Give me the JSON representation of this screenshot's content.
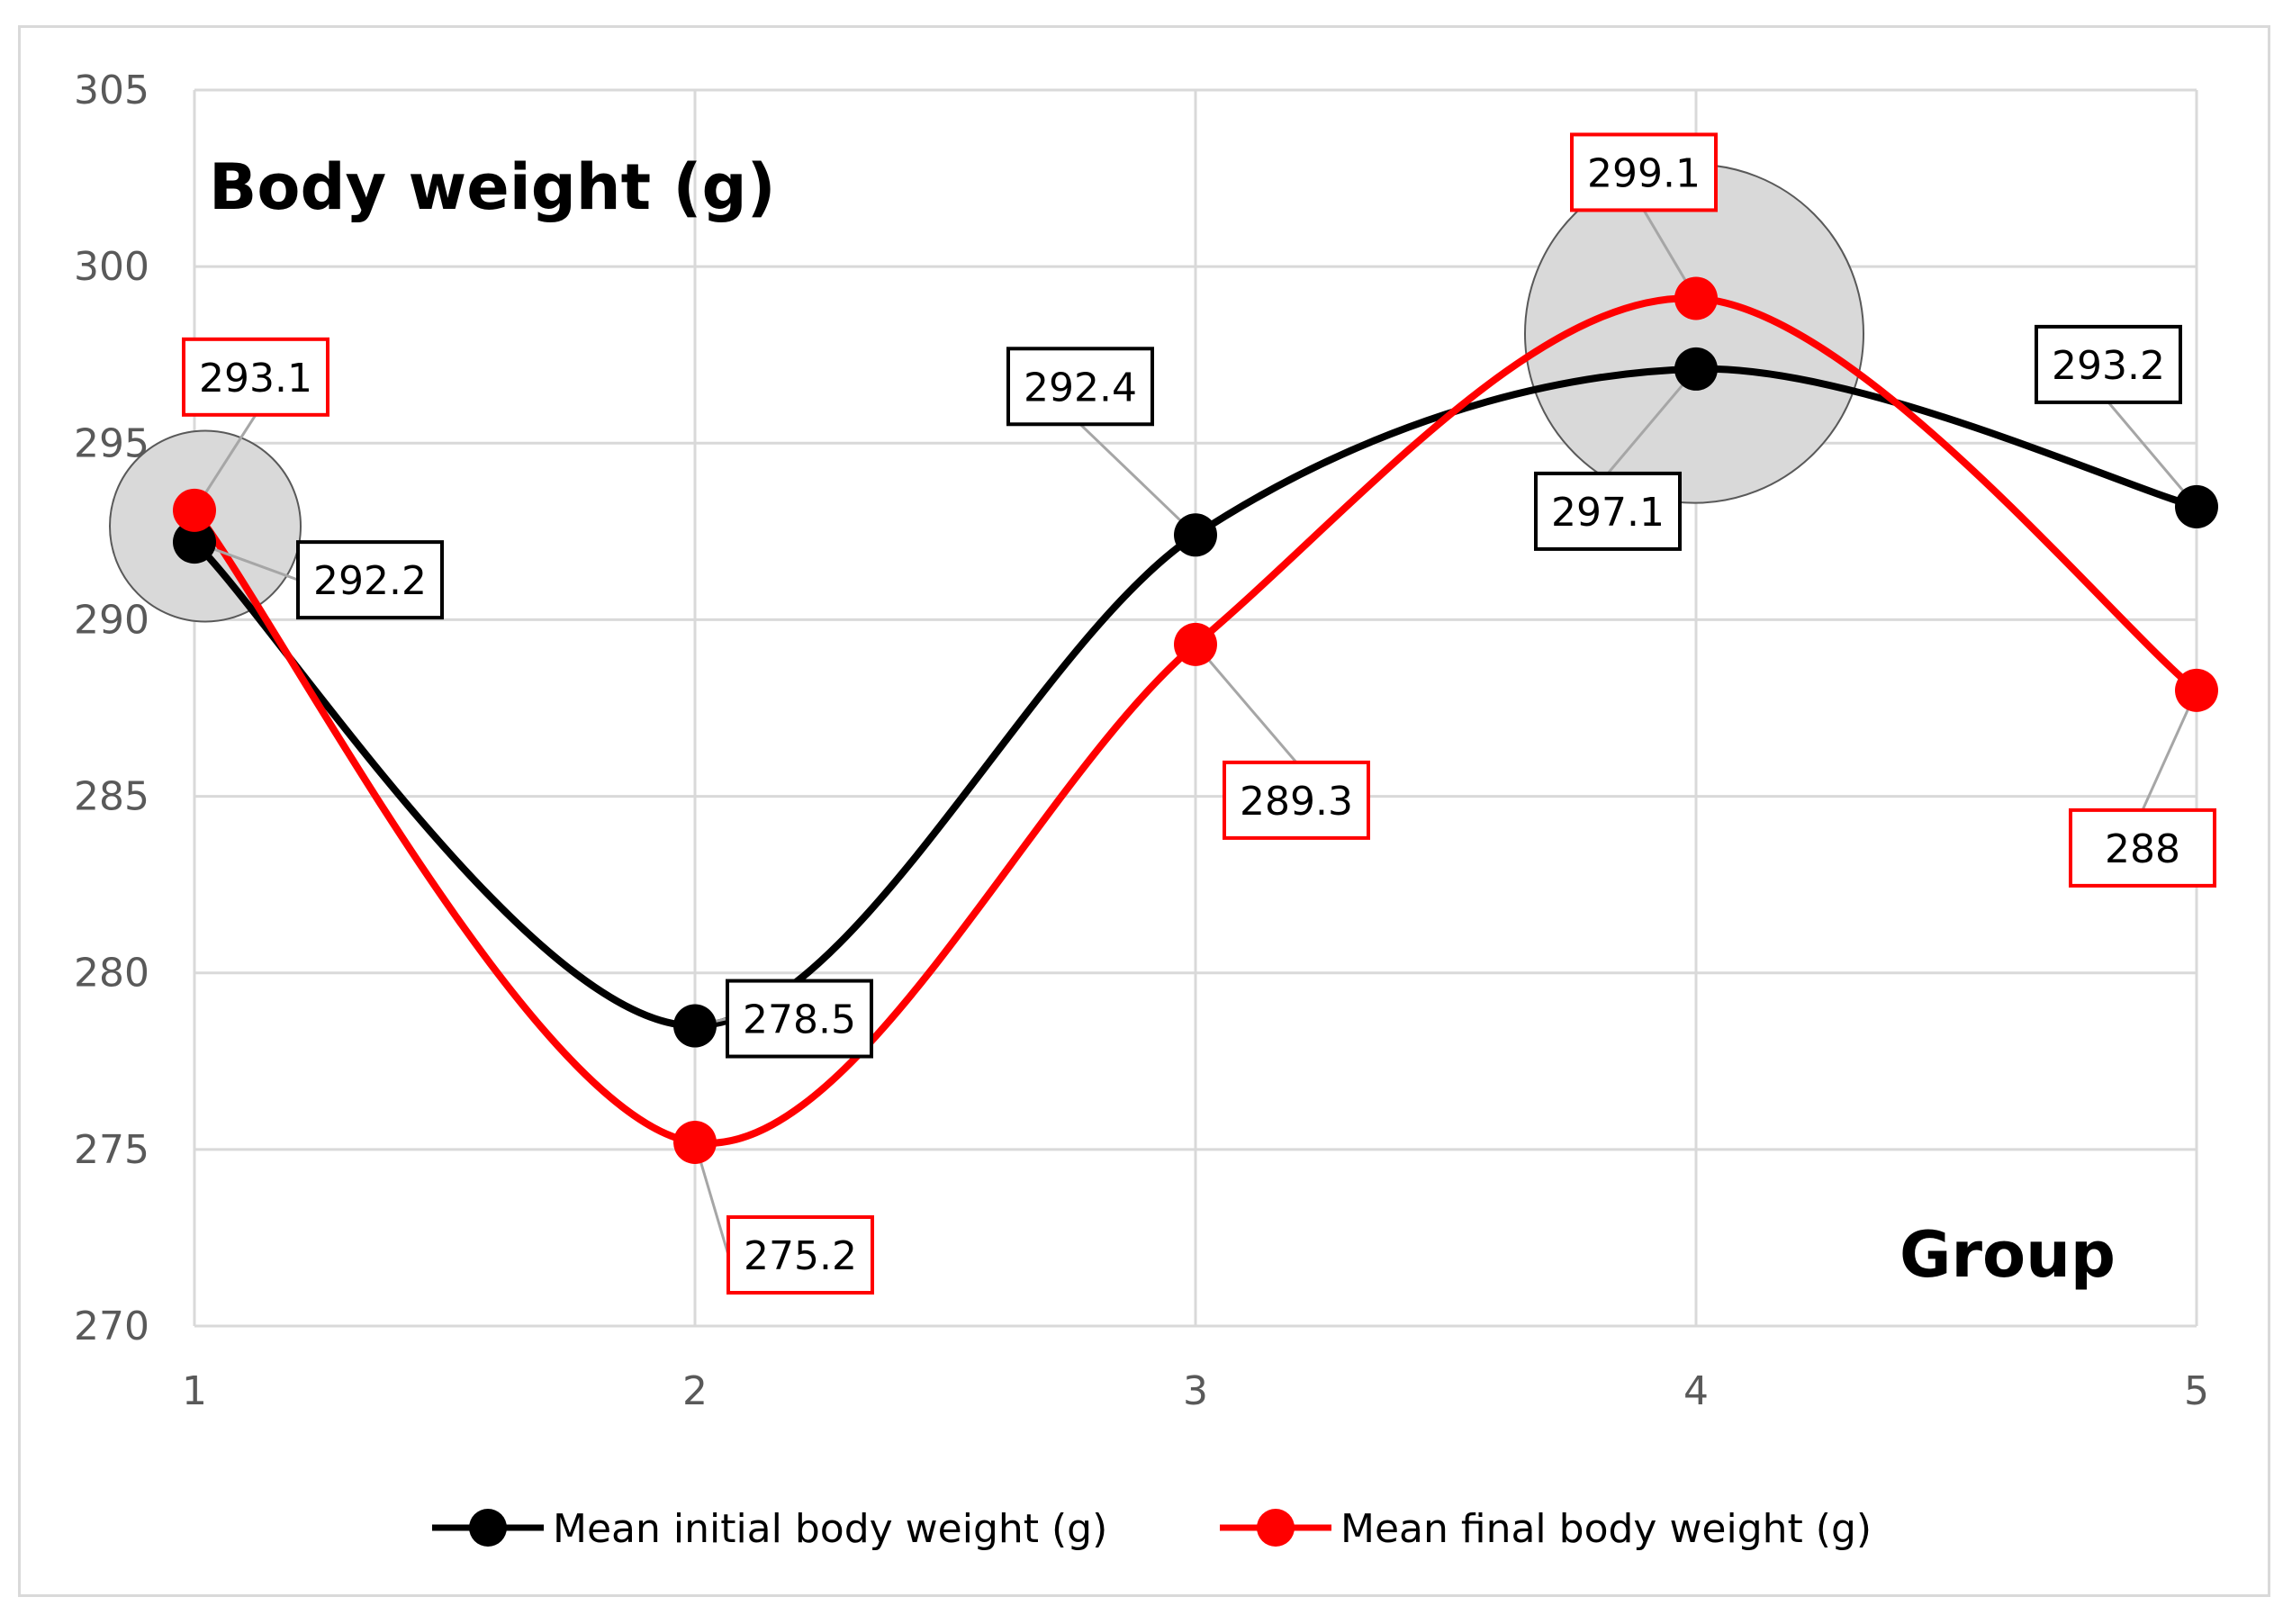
{
  "chart_data": {
    "type": "line",
    "title": "Body weight (g)",
    "xlabel": "Group",
    "ylabel": "",
    "ylim": [
      270,
      305
    ],
    "y_ticks": [
      "270",
      "275",
      "280",
      "285",
      "290",
      "295",
      "300",
      "305"
    ],
    "categories": [
      "1",
      "2",
      "3",
      "4",
      "5"
    ],
    "grid": true,
    "smooth": true,
    "legend_position": "bottom",
    "series": [
      {
        "name": "Mean initial body weight (g)",
        "color": "#000000",
        "values": [
          292.2,
          278.5,
          292.4,
          297.1,
          293.2
        ],
        "labels": [
          "292.2",
          "278.5",
          "292.4",
          "297.1",
          "293.2"
        ]
      },
      {
        "name": "Mean final body weight (g)",
        "color": "#ff0000",
        "values": [
          293.1,
          275.2,
          289.3,
          299.1,
          288
        ],
        "labels": [
          "293.1",
          "275.2",
          "289.3",
          "299.1",
          "288"
        ]
      }
    ],
    "highlights": [
      {
        "category": "1",
        "note": "grey circle around group 1 points"
      },
      {
        "category": "4",
        "note": "grey circle around group 4 points"
      }
    ]
  }
}
